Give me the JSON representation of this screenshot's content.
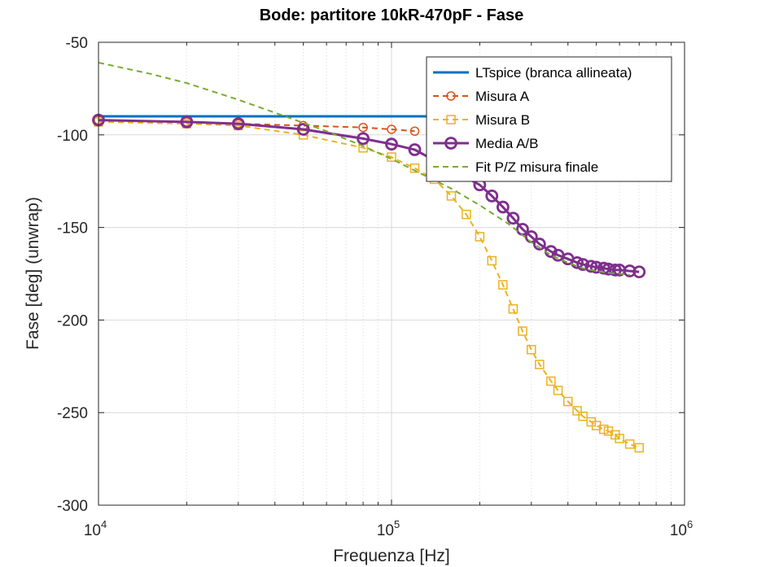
{
  "chart_data": {
    "type": "line",
    "title": "Bode: partitore 10kR-470pF - Fase",
    "xlabel": "Frequenza [Hz]",
    "ylabel": "Fase [deg] (unwrap)",
    "xscale": "log",
    "xlim": [
      10000,
      1000000
    ],
    "ylim": [
      -300,
      -50
    ],
    "x_ticks": [
      {
        "value": 10000,
        "base": "10",
        "exp": "4"
      },
      {
        "value": 100000,
        "base": "10",
        "exp": "5"
      },
      {
        "value": 1000000,
        "base": "10",
        "exp": "6"
      }
    ],
    "y_ticks": [
      {
        "value": -50,
        "label": "-50"
      },
      {
        "value": -100,
        "label": "-100"
      },
      {
        "value": -150,
        "label": "-150"
      },
      {
        "value": -200,
        "label": "-200"
      },
      {
        "value": -250,
        "label": "-250"
      },
      {
        "value": -300,
        "label": "-300"
      }
    ],
    "grid": true,
    "legend_position": "top-right",
    "series": [
      {
        "name": "LTspice (branca allineata)",
        "color": "#0072BD",
        "style": "solid",
        "marker": "none",
        "x": [
          10000,
          150000
        ],
        "y": [
          -90,
          -90
        ]
      },
      {
        "name": "Misura A",
        "color": "#D95319",
        "style": "dashed",
        "marker": "circle",
        "x": [
          10000,
          20000,
          30000,
          50000,
          80000,
          100000,
          120000
        ],
        "y": [
          -92,
          -93,
          -94,
          -95,
          -96,
          -97,
          -98
        ]
      },
      {
        "name": "Misura B",
        "color": "#EDB120",
        "style": "dashed",
        "marker": "square",
        "x": [
          10000,
          20000,
          30000,
          50000,
          80000,
          100000,
          120000,
          140000,
          160000,
          180000,
          200000,
          220000,
          240000,
          260000,
          280000,
          300000,
          320000,
          350000,
          370000,
          400000,
          430000,
          450000,
          480000,
          500000,
          530000,
          550000,
          580000,
          600000,
          650000,
          700000
        ],
        "y": [
          -93,
          -94,
          -95,
          -100,
          -107,
          -112,
          -118,
          -124,
          -133,
          -143,
          -155,
          -168,
          -181,
          -194,
          -206,
          -216,
          -224,
          -233,
          -238,
          -244,
          -249,
          -252,
          -255,
          -257,
          -259,
          -260,
          -262,
          -264,
          -267,
          -269
        ]
      },
      {
        "name": "Media A/B",
        "color": "#7E2F8E",
        "style": "solid",
        "marker": "circle",
        "x": [
          10000,
          20000,
          30000,
          50000,
          80000,
          100000,
          120000,
          200000,
          220000,
          240000,
          260000,
          280000,
          300000,
          320000,
          350000,
          370000,
          400000,
          430000,
          450000,
          480000,
          500000,
          530000,
          550000,
          580000,
          600000,
          650000,
          700000
        ],
        "y": [
          -92,
          -93,
          -94,
          -97,
          -102,
          -105,
          -108,
          -127,
          -133,
          -139,
          -145,
          -151,
          -155,
          -159,
          -163,
          -165,
          -167,
          -169,
          -170,
          -171,
          -171.5,
          -172,
          -172.5,
          -173,
          -173,
          -173.5,
          -174
        ]
      },
      {
        "name": "Fit P/Z misura finale",
        "color": "#77AC30",
        "style": "dashed",
        "marker": "none",
        "x": [
          10000,
          15000,
          20000,
          30000,
          40000,
          60000,
          80000,
          100000,
          130000,
          160000,
          200000,
          250000,
          300000,
          350000,
          400000,
          450000,
          500000,
          550000,
          600000,
          650000
        ],
        "y": [
          -61,
          -67,
          -72,
          -81,
          -88,
          -98,
          -106,
          -113,
          -122,
          -129,
          -138,
          -148,
          -158,
          -165,
          -169,
          -172,
          -173.5,
          -174.5,
          -175,
          -175.5
        ]
      }
    ]
  }
}
